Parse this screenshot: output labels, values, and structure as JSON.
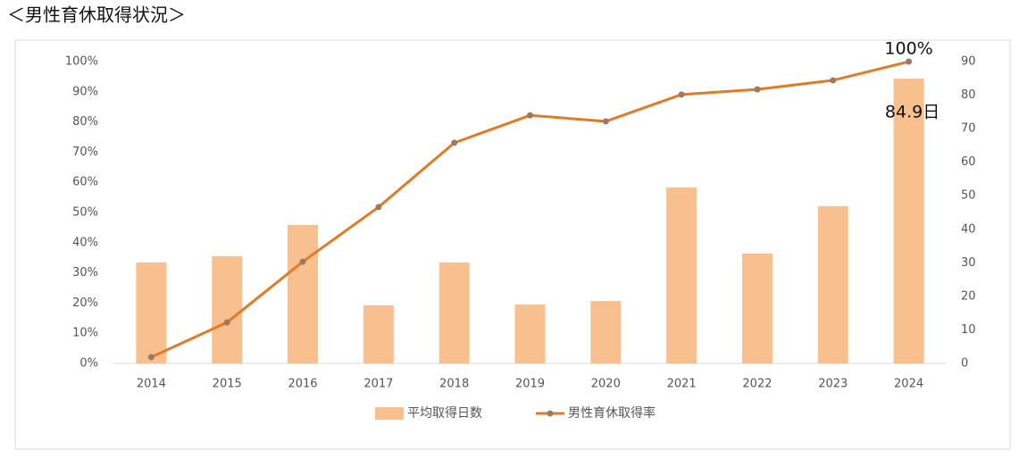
{
  "chart_data": {
    "type": "combo",
    "title": "＜男性育休取得状況＞",
    "categories": [
      "2014",
      "2015",
      "2016",
      "2017",
      "2018",
      "2019",
      "2020",
      "2021",
      "2022",
      "2023",
      "2024"
    ],
    "ylim": [
      0,
      100
    ],
    "yticks": [
      {
        "value": 0,
        "label": "0%"
      },
      {
        "value": 10,
        "label": "10%"
      },
      {
        "value": 20,
        "label": "20%"
      },
      {
        "value": 30,
        "label": "30%"
      },
      {
        "value": 40,
        "label": "40%"
      },
      {
        "value": 50,
        "label": "50%"
      },
      {
        "value": 60,
        "label": "60%"
      },
      {
        "value": 70,
        "label": "70%"
      },
      {
        "value": 80,
        "label": "80%"
      },
      {
        "value": 90,
        "label": "90%"
      },
      {
        "value": 100,
        "label": "100%"
      }
    ],
    "y2lim": [
      0,
      90
    ],
    "y2ticks": [
      0,
      10,
      20,
      30,
      40,
      50,
      60,
      70,
      80,
      90
    ],
    "series": [
      {
        "name": "平均取得日数",
        "type": "bar",
        "axis": "y2",
        "color": "#f8bf8f",
        "values": [
          30.1,
          32.0,
          41.3,
          17.3,
          30.1,
          17.6,
          18.6,
          52.5,
          32.8,
          46.9,
          84.9
        ],
        "value_labels": [
          null,
          null,
          null,
          null,
          null,
          null,
          null,
          null,
          null,
          null,
          "84.9日"
        ]
      },
      {
        "name": "男性育休取得率",
        "type": "line",
        "color": "#e07b28",
        "marker_color": "#9c7a62",
        "values": [
          2.1,
          13.6,
          33.7,
          51.8,
          73.1,
          82.2,
          80.2,
          89.1,
          90.8,
          93.8,
          100
        ],
        "value_labels": [
          null,
          null,
          null,
          null,
          null,
          null,
          null,
          null,
          null,
          null,
          "100%"
        ]
      }
    ]
  }
}
